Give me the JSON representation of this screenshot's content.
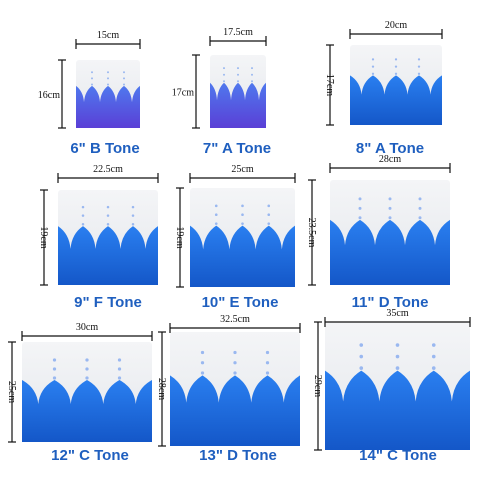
{
  "items": [
    {
      "label": "6\" B Tone",
      "width": "15cm",
      "height": "16cm"
    },
    {
      "label": "7\" A Tone",
      "width": "17.5cm",
      "height": "17cm"
    },
    {
      "label": "8\" A Tone",
      "width": "20cm",
      "height": "17cm"
    },
    {
      "label": "9\" F Tone",
      "width": "22.5cm",
      "height": "19cm"
    },
    {
      "label": "10\" E Tone",
      "width": "25cm",
      "height": "19cm"
    },
    {
      "label": "11\" D Tone",
      "width": "28cm",
      "height": "23.5cm"
    },
    {
      "label": "12\" C Tone",
      "width": "30cm",
      "height": "25cm"
    },
    {
      "label": "13\" D Tone",
      "width": "32.5cm",
      "height": "28cm"
    },
    {
      "label": "14\" C Tone",
      "width": "35cm",
      "height": "29cm"
    }
  ]
}
